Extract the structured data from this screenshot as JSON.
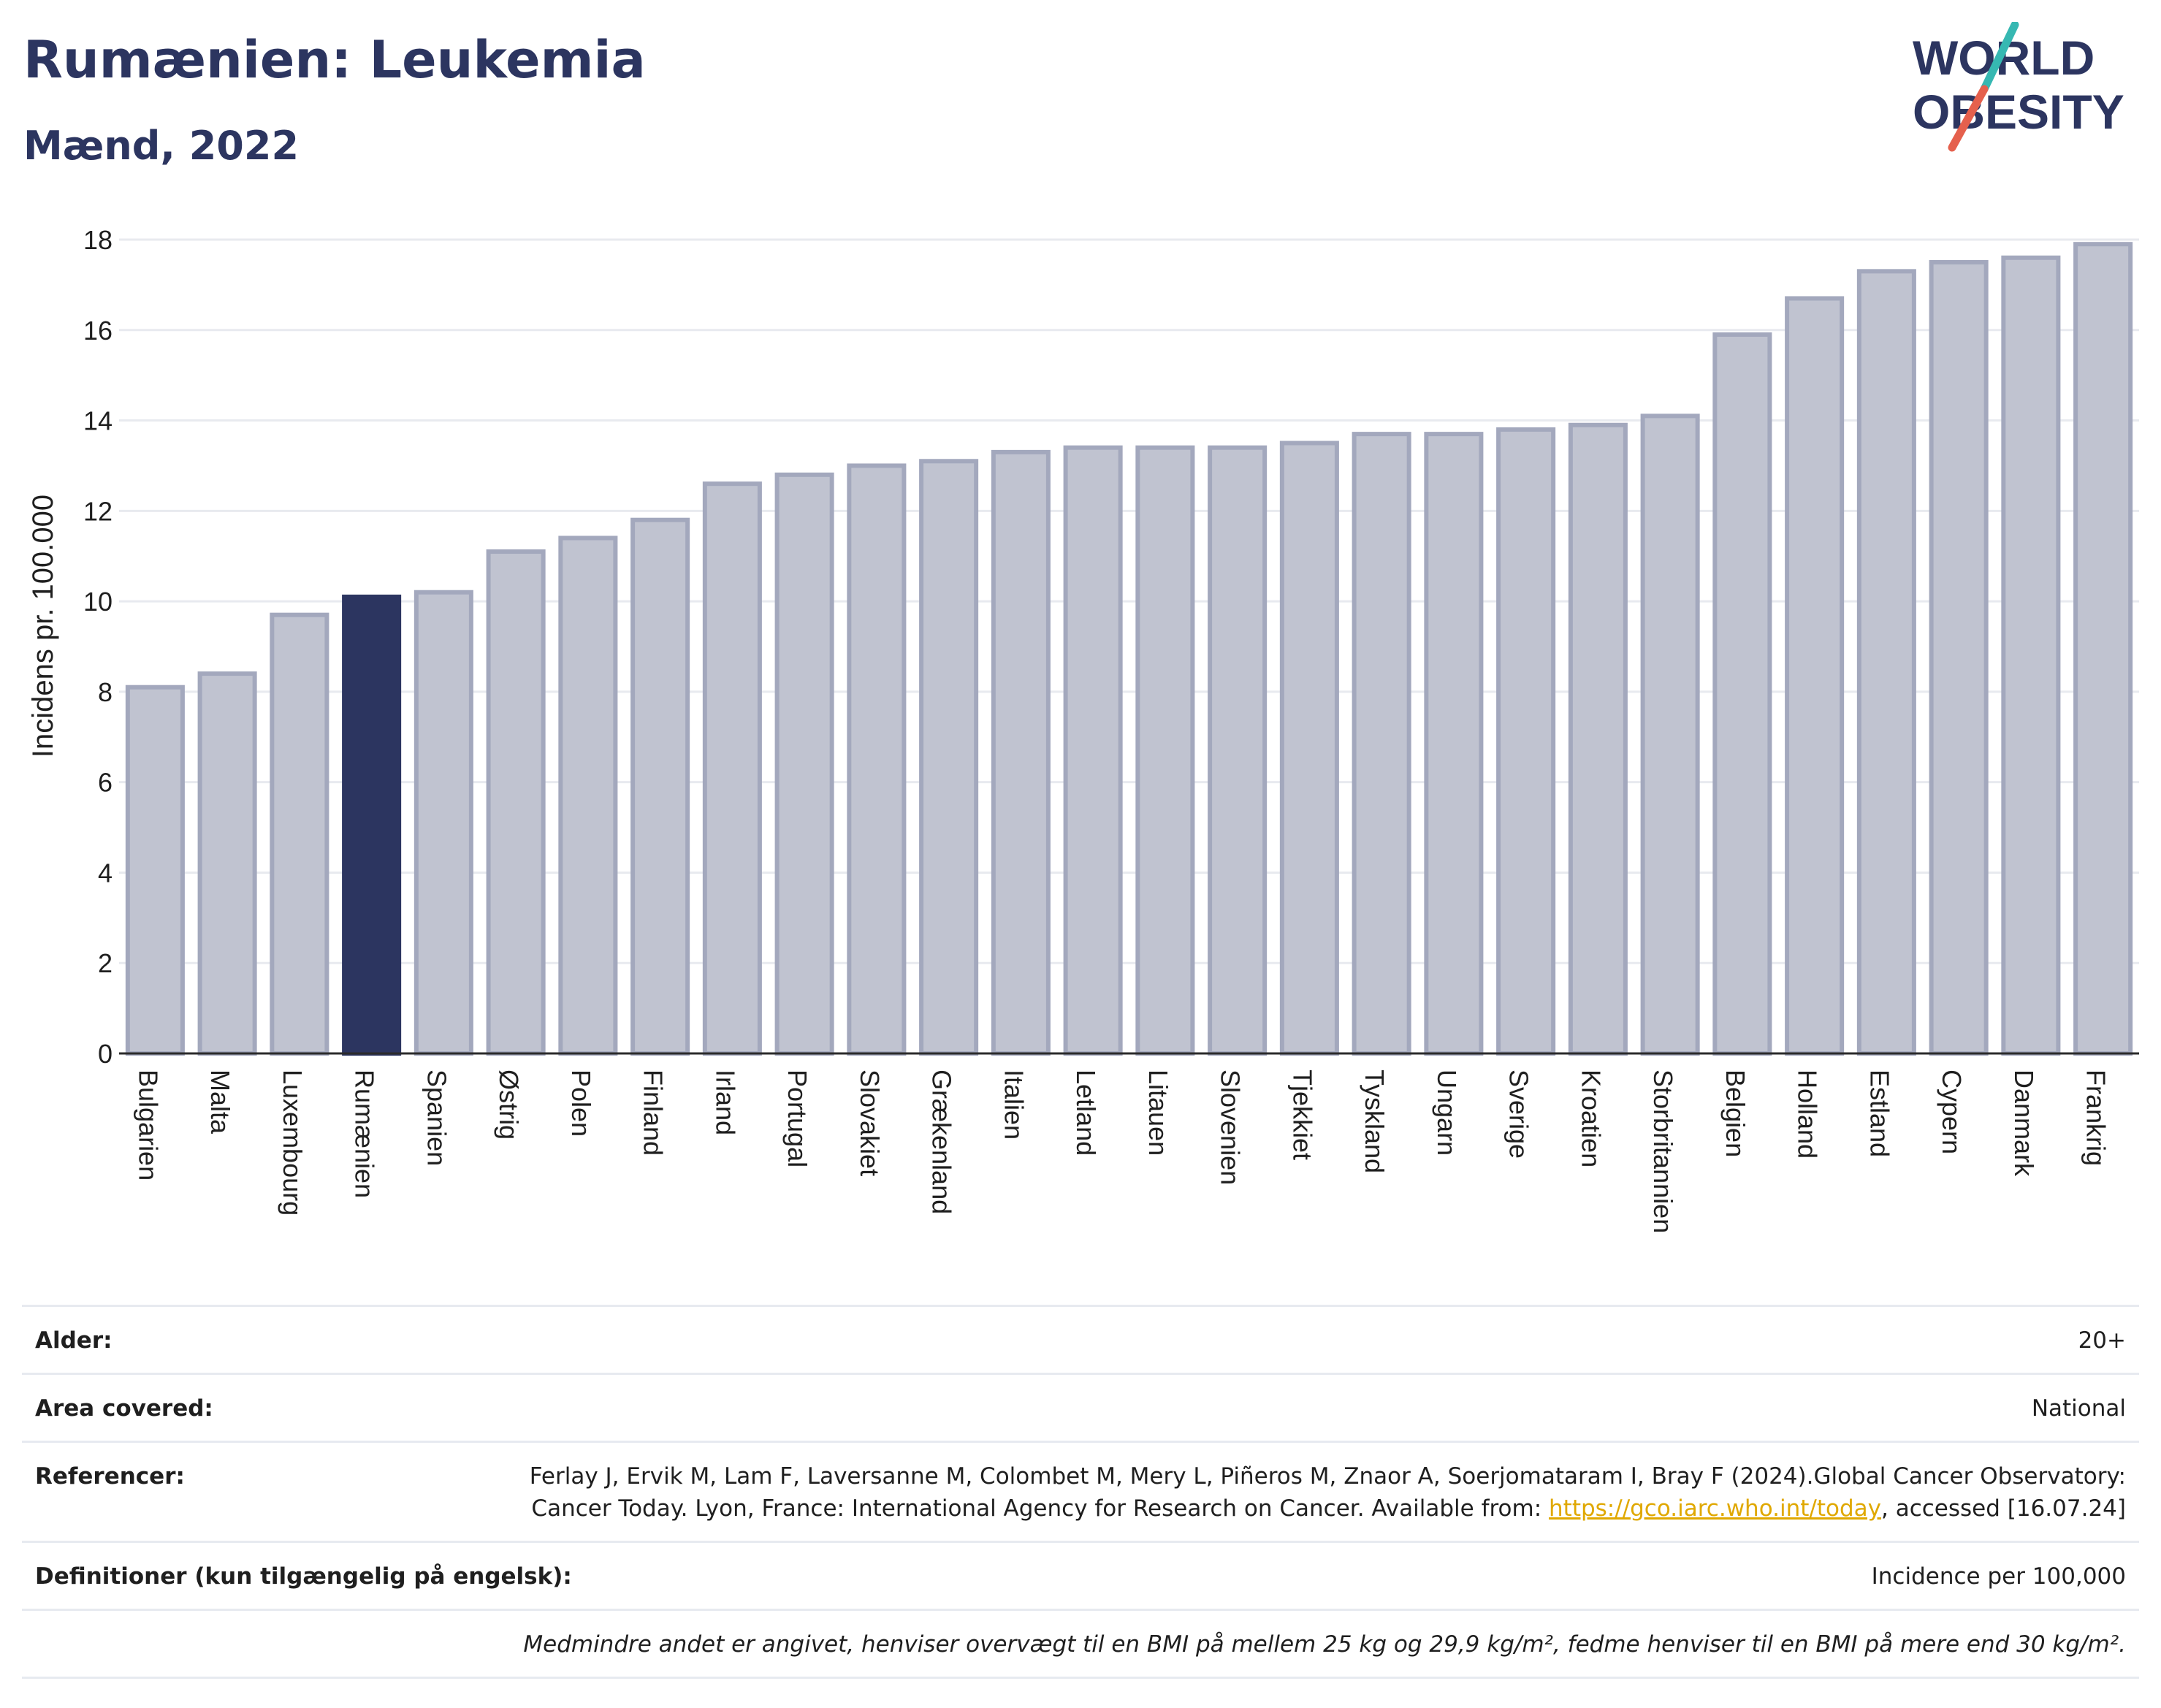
{
  "header": {
    "title": "Rumænien: Leukemia",
    "subtitle": "Mænd, 2022"
  },
  "logo": {
    "line1": "WORLD",
    "line2": "OBESITY",
    "accent_colors": [
      "#36b8b2",
      "#e5604d"
    ],
    "text_color": "#2c3560"
  },
  "colors": {
    "highlight_bar": "#2c3560",
    "default_bar": "#c0c3d0",
    "default_bar_border": "#a3a8bd",
    "gridline": "#e8eaef"
  },
  "chart_data": {
    "type": "bar",
    "categories": [
      "Bulgarien",
      "Malta",
      "Luxembourg",
      "Rumænien",
      "Spanien",
      "Østrig",
      "Polen",
      "Finland",
      "Irland",
      "Portugal",
      "Slovakiet",
      "Grækenland",
      "Italien",
      "Letland",
      "Litauen",
      "Slovenien",
      "Tjekkiet",
      "Tyskland",
      "Ungarn",
      "Sverige",
      "Kroatien",
      "Storbritannien",
      "Belgien",
      "Holland",
      "Estland",
      "Cypern",
      "Danmark",
      "Frankrig"
    ],
    "values": [
      8.1,
      8.4,
      9.7,
      10.1,
      10.2,
      11.1,
      11.4,
      11.8,
      12.6,
      12.8,
      13.0,
      13.1,
      13.3,
      13.4,
      13.4,
      13.4,
      13.5,
      13.7,
      13.7,
      13.8,
      13.9,
      14.1,
      15.9,
      16.7,
      17.3,
      17.5,
      17.6,
      17.9
    ],
    "highlight": "Rumænien",
    "ylabel": "Incidens pr. 100.000",
    "xlabel": "",
    "ylim": [
      0,
      18
    ],
    "yticks": [
      0,
      2,
      4,
      6,
      8,
      10,
      12,
      14,
      16,
      18
    ],
    "grid": true
  },
  "info": {
    "rows": [
      {
        "label": "Alder:",
        "value": "20+"
      },
      {
        "label": "Area covered:",
        "value": "National"
      },
      {
        "label": "Referencer:",
        "value_before": "Ferlay J, Ervik M, Lam F, Laversanne M, Colombet M, Mery L, Piñeros M, Znaor A, Soerjomataram I, Bray F (2024).Global Cancer Observatory: Cancer Today. Lyon, France: International Agency for Research on Cancer. Available from: ",
        "link": "https://gco.iarc.who.int/today",
        "value_after": ", accessed [16.07.24]"
      },
      {
        "label": "Definitioner (kun tilgængelig på engelsk):",
        "value": "Incidence per 100,000"
      }
    ],
    "note": "Medmindre andet er angivet, henviser overvægt til en BMI på mellem 25 kg og 29,9 kg/m², fedme henviser til en BMI på mere end 30 kg/m²."
  }
}
